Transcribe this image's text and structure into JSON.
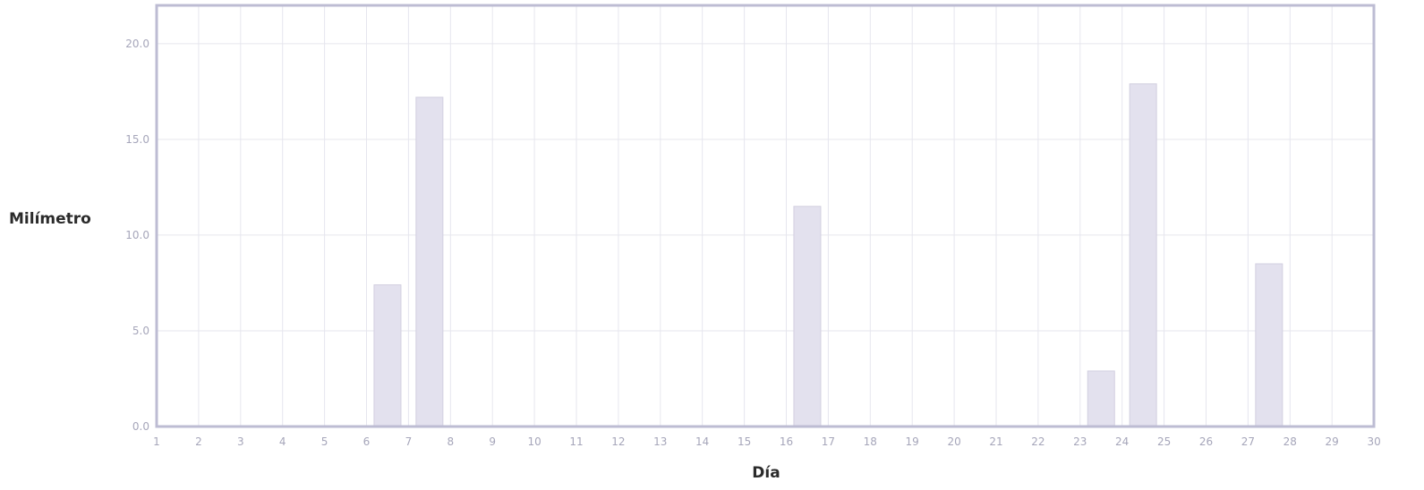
{
  "chart_data": {
    "type": "bar",
    "xlabel": "Día",
    "ylabel": "Milímetro",
    "x_ticks": [
      "1",
      "2",
      "3",
      "4",
      "5",
      "6",
      "7",
      "8",
      "9",
      "10",
      "11",
      "12",
      "13",
      "14",
      "15",
      "16",
      "17",
      "18",
      "19",
      "20",
      "21",
      "22",
      "23",
      "24",
      "25",
      "26",
      "27",
      "28",
      "29",
      "30"
    ],
    "y_ticks": [
      "0.0",
      "5.0",
      "10.0",
      "15.0",
      "20.0"
    ],
    "ylim": [
      0,
      22
    ],
    "xlim": [
      1,
      30
    ],
    "grid": true,
    "bars": [
      {
        "day": 6,
        "value": 7.4
      },
      {
        "day": 7,
        "value": 17.2
      },
      {
        "day": 16,
        "value": 11.5
      },
      {
        "day": 23,
        "value": 2.9
      },
      {
        "day": 24,
        "value": 17.9
      },
      {
        "day": 27,
        "value": 8.5
      }
    ],
    "colors": {
      "bar": "#e3e1ee",
      "bar_edge": "#d2cfe0",
      "grid": "#e6e6ee",
      "frame": "#bdbcd3"
    }
  }
}
